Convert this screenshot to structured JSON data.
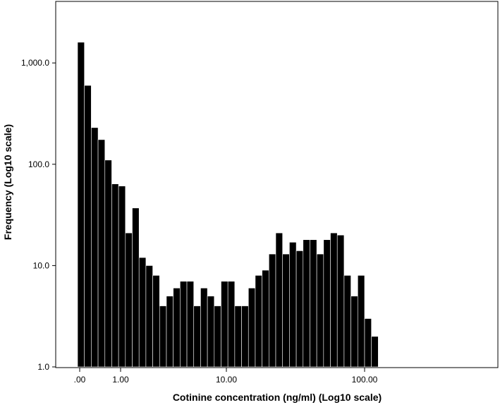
{
  "chart_data": {
    "type": "bar",
    "title": "",
    "xlabel": "Cotinine concentration (ng/ml) (Log10 scale)",
    "ylabel": "Frequency (Log10 scale)",
    "y_scale": "log10",
    "ylim": [
      1,
      3000
    ],
    "grid": false,
    "legend": "none",
    "bar_color": "#000000",
    "bar_edge_color": "#ffffff",
    "x_ticks": [
      ".00",
      "1.00",
      "10.00",
      "100.00"
    ],
    "y_ticks": [
      "1.0",
      "10.0",
      "100.0",
      "1,000.0"
    ],
    "values": [
      1600,
      600,
      230,
      175,
      110,
      64,
      61,
      21,
      37,
      12,
      10,
      8,
      4,
      5,
      6,
      7,
      7,
      4,
      6,
      5,
      4,
      7,
      7,
      4,
      4,
      6,
      8,
      9,
      13,
      21,
      13,
      17,
      14,
      18,
      18,
      13,
      18,
      21,
      20,
      8,
      5,
      8,
      3,
      2
    ]
  }
}
